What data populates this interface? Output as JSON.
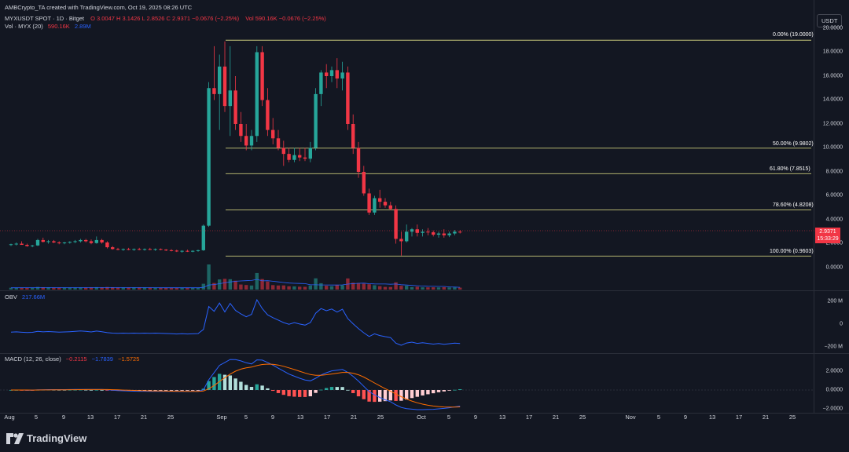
{
  "header": {
    "credit": "AMBCrypto_TA created with TradingView.com, Oct 19, 2025 08:26 UTC",
    "symbol": "MYXUSDT SPOT · 1D · Bitget",
    "ohlc": "O 3.0047  H 3.1426  L 2.8526  C 2.9371  −0.0676 (−2.25%)",
    "vol_in_header": "Vol  590.16K  −0.0676 (−2.25%)",
    "vol_label": "Vol · MYX (20)",
    "vol_value": "590.16K",
    "vol_ma": "2.89M"
  },
  "currency_button": "USDT",
  "price_axis": [
    "20.0000",
    "18.0000",
    "16.0000",
    "14.0000",
    "12.0000",
    "10.0000",
    "8.0000",
    "6.0000",
    "4.0000",
    "2.0000",
    "0.0000"
  ],
  "last_price": {
    "price": "2.9371",
    "countdown": "15:33:29"
  },
  "fib_levels": [
    {
      "label": "0.00% (19.0000)",
      "price": 19.0
    },
    {
      "label": "50.00% (9.9802)",
      "price": 9.9802
    },
    {
      "label": "61.80% (7.8515)",
      "price": 7.8515
    },
    {
      "label": "78.60% (4.8208)",
      "price": 4.8208
    },
    {
      "label": "100.00% (0.9603)",
      "price": 0.9603
    }
  ],
  "obv": {
    "label": "OBV",
    "value": "217.66M",
    "axis": [
      "200 M",
      "0",
      "−200 M"
    ]
  },
  "macd": {
    "label": "MACD (12, 26, close)",
    "hist": "−0.2115",
    "macd": "−1.7839",
    "signal": "−1.5725",
    "axis": [
      "2.0000",
      "0.0000",
      "−2.0000"
    ]
  },
  "time_axis": [
    "Aug",
    "5",
    "9",
    "13",
    "17",
    "21",
    "25",
    "Sep",
    "5",
    "9",
    "13",
    "17",
    "21",
    "25",
    "Oct",
    "5",
    "9",
    "13",
    "17",
    "21",
    "25",
    "Nov",
    "5",
    "9",
    "13",
    "17",
    "21",
    "25"
  ],
  "footer": {
    "brand": "TradingView"
  },
  "colors": {
    "up": "#26a69a",
    "down": "#f23645",
    "background": "#131722",
    "fib": "#c8c87a",
    "obv": "#2962ff",
    "signal": "#ff6d00"
  },
  "chart_data": {
    "type": "candlestick",
    "candles_ohlc": [
      [
        1.9,
        2.0,
        1.8,
        1.95
      ],
      [
        1.95,
        2.1,
        1.85,
        2.0
      ],
      [
        2.0,
        2.2,
        1.9,
        1.9
      ],
      [
        1.9,
        2.0,
        1.75,
        1.8
      ],
      [
        1.8,
        1.9,
        1.7,
        1.85
      ],
      [
        1.85,
        2.4,
        1.8,
        2.3
      ],
      [
        2.3,
        2.5,
        2.1,
        2.15
      ],
      [
        2.15,
        2.3,
        2.0,
        2.2
      ],
      [
        2.2,
        2.3,
        2.05,
        2.1
      ],
      [
        2.1,
        2.2,
        1.95,
        2.05
      ],
      [
        2.05,
        2.15,
        1.95,
        2.1
      ],
      [
        2.1,
        2.2,
        2.0,
        2.15
      ],
      [
        2.15,
        2.3,
        2.05,
        2.2
      ],
      [
        2.2,
        2.4,
        2.1,
        2.3
      ],
      [
        2.3,
        2.4,
        2.1,
        2.2
      ],
      [
        2.2,
        2.35,
        1.95,
        2.05
      ],
      [
        2.05,
        2.6,
        2.0,
        2.3
      ],
      [
        2.3,
        2.4,
        2.0,
        2.1
      ],
      [
        2.1,
        2.2,
        1.6,
        1.7
      ],
      [
        1.7,
        1.8,
        1.5,
        1.55
      ],
      [
        1.55,
        1.65,
        1.45,
        1.5
      ],
      [
        1.5,
        1.6,
        1.4,
        1.55
      ],
      [
        1.55,
        1.65,
        1.45,
        1.5
      ],
      [
        1.5,
        1.6,
        1.4,
        1.55
      ],
      [
        1.55,
        1.65,
        1.45,
        1.5
      ],
      [
        1.5,
        1.6,
        1.42,
        1.55
      ],
      [
        1.55,
        1.65,
        1.45,
        1.5
      ],
      [
        1.5,
        1.6,
        1.4,
        1.55
      ],
      [
        1.55,
        1.6,
        1.45,
        1.5
      ],
      [
        1.5,
        1.55,
        1.38,
        1.45
      ],
      [
        1.45,
        1.55,
        1.35,
        1.42
      ],
      [
        1.42,
        1.5,
        1.3,
        1.35
      ],
      [
        1.35,
        1.45,
        1.25,
        1.4
      ],
      [
        1.4,
        1.5,
        1.3,
        1.35
      ],
      [
        1.35,
        1.45,
        1.28,
        1.4
      ],
      [
        1.4,
        1.5,
        1.32,
        1.45
      ],
      [
        1.45,
        3.6,
        1.4,
        3.5
      ],
      [
        3.5,
        15.5,
        3.4,
        15.0
      ],
      [
        15.0,
        18.5,
        14.0,
        14.5
      ],
      [
        14.5,
        17.8,
        11.5,
        16.8
      ],
      [
        16.8,
        18.9,
        13.0,
        13.5
      ],
      [
        13.5,
        18.5,
        11.0,
        14.8
      ],
      [
        14.8,
        16.0,
        11.5,
        12.0
      ],
      [
        12.0,
        13.0,
        10.5,
        11.0
      ],
      [
        11.0,
        12.0,
        9.8,
        10.2
      ],
      [
        10.2,
        11.5,
        9.8,
        11.0
      ],
      [
        11.0,
        18.5,
        10.5,
        18.0
      ],
      [
        18.0,
        18.5,
        13.5,
        14.0
      ],
      [
        14.0,
        15.0,
        11.0,
        11.5
      ],
      [
        11.5,
        12.5,
        10.3,
        10.8
      ],
      [
        10.8,
        11.5,
        9.8,
        10.0
      ],
      [
        10.0,
        10.6,
        8.5,
        9.5
      ],
      [
        9.5,
        10.0,
        8.8,
        9.0
      ],
      [
        9.0,
        10.0,
        8.8,
        9.4
      ],
      [
        9.4,
        10.0,
        8.9,
        9.2
      ],
      [
        9.2,
        10.0,
        8.9,
        9.1
      ],
      [
        9.1,
        10.5,
        8.8,
        10.0
      ],
      [
        10.0,
        15.0,
        9.8,
        14.5
      ],
      [
        14.5,
        16.5,
        13.5,
        16.3
      ],
      [
        16.3,
        17.0,
        15.0,
        16.0
      ],
      [
        16.0,
        16.8,
        15.5,
        16.5
      ],
      [
        16.5,
        17.5,
        15.0,
        15.8
      ],
      [
        15.8,
        17.2,
        14.8,
        16.3
      ],
      [
        16.3,
        16.8,
        11.5,
        12.0
      ],
      [
        12.0,
        12.8,
        9.5,
        10.0
      ],
      [
        10.0,
        10.5,
        7.5,
        8.0
      ],
      [
        8.0,
        8.5,
        6.0,
        6.2
      ],
      [
        6.2,
        6.6,
        4.4,
        4.6
      ],
      [
        4.6,
        6.0,
        4.4,
        5.8
      ],
      [
        5.8,
        6.5,
        5.0,
        5.5
      ],
      [
        5.5,
        5.8,
        5.0,
        5.2
      ],
      [
        5.2,
        5.5,
        4.8,
        4.9
      ],
      [
        4.9,
        5.2,
        2.0,
        2.4
      ],
      [
        2.4,
        3.0,
        1.0,
        2.2
      ],
      [
        2.2,
        3.6,
        2.1,
        3.0
      ],
      [
        3.0,
        3.3,
        2.6,
        3.2
      ],
      [
        3.2,
        3.6,
        2.6,
        2.9
      ],
      [
        2.9,
        3.2,
        2.6,
        3.0
      ],
      [
        3.0,
        3.3,
        2.7,
        2.95
      ],
      [
        2.95,
        3.1,
        2.6,
        2.75
      ],
      [
        2.75,
        3.0,
        2.5,
        2.85
      ],
      [
        2.85,
        3.2,
        2.5,
        2.7
      ],
      [
        2.7,
        3.0,
        2.55,
        2.85
      ],
      [
        2.85,
        3.15,
        2.7,
        3.0
      ],
      [
        3.0,
        3.14,
        2.85,
        2.94
      ]
    ],
    "price_range": [
      -1,
      20
    ],
    "obv_range": [
      -260,
      260
    ],
    "macd_range": [
      -2.6,
      3.6
    ],
    "last_close": 2.9371
  }
}
